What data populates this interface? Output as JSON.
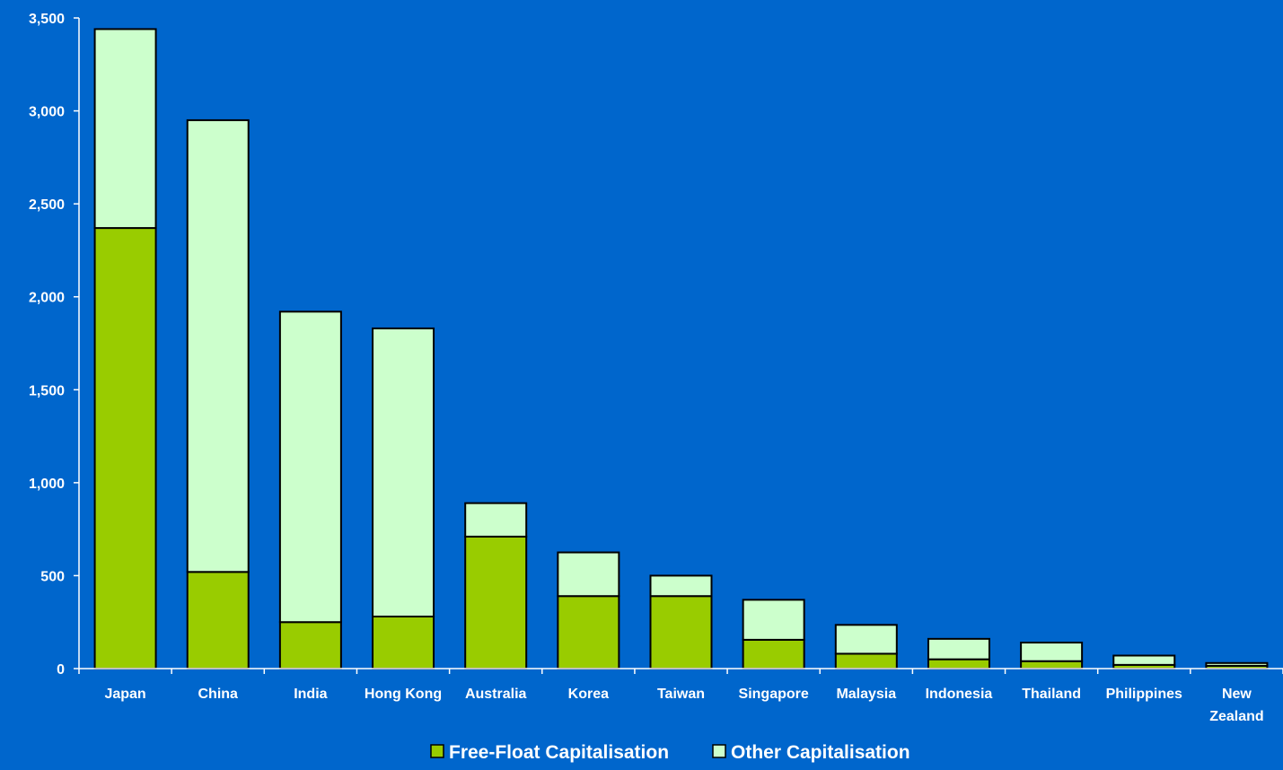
{
  "chart_data": {
    "type": "bar",
    "stacked": true,
    "categories": [
      "Japan",
      "China",
      "India",
      "Hong Kong",
      "Australia",
      "Korea",
      "Taiwan",
      "Singapore",
      "Malaysia",
      "Indonesia",
      "Thailand",
      "Philippines",
      "New Zealand"
    ],
    "series": [
      {
        "name": "Free-Float Capitalisation",
        "color": "#99CC00",
        "values": [
          2370,
          520,
          250,
          280,
          710,
          390,
          390,
          155,
          80,
          50,
          40,
          20,
          15
        ]
      },
      {
        "name": "Other Capitalisation",
        "color": "#CCFFCC",
        "values": [
          1070,
          2430,
          1670,
          1550,
          180,
          235,
          110,
          215,
          155,
          110,
          100,
          50,
          15
        ]
      }
    ],
    "ylim": [
      0,
      3500
    ],
    "yticks": [
      0,
      500,
      1000,
      1500,
      2000,
      2500,
      3000,
      3500
    ],
    "ytick_labels": [
      "0",
      "500",
      "1,000",
      "1,500",
      "2,000",
      "2,500",
      "3,000",
      "3,500"
    ],
    "xtick_labels": [
      [
        "Japan"
      ],
      [
        "China"
      ],
      [
        "India"
      ],
      [
        "Hong Kong"
      ],
      [
        "Australia"
      ],
      [
        "Korea"
      ],
      [
        "Taiwan"
      ],
      [
        "Singapore"
      ],
      [
        "Malaysia"
      ],
      [
        "Indonesia"
      ],
      [
        "Thailand"
      ],
      [
        "Philippines"
      ],
      [
        "New",
        "Zealand"
      ]
    ],
    "title": "",
    "xlabel": "",
    "ylabel": "",
    "grid": false,
    "legend_position": "bottom-center",
    "background_color": "#0066CC",
    "axis_color": "#FFFFFF",
    "bar_outline_color": "#000000"
  }
}
